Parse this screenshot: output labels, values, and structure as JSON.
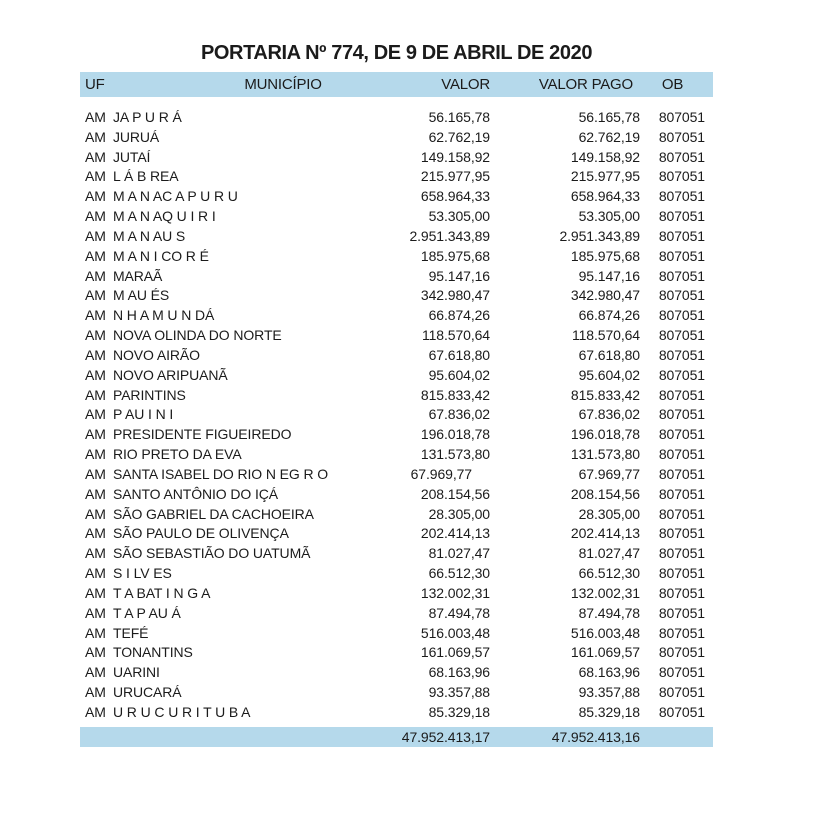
{
  "document": {
    "title": "PORTARIA Nº 774, DE 9 DE ABRIL DE 2020"
  },
  "colors": {
    "band_bg": "#b5d9eb",
    "text": "#1b1b1b",
    "page_bg": "#ffffff"
  },
  "table": {
    "columns": {
      "uf": "UF",
      "municipio": "MUNICÍPIO",
      "valor": "VALOR",
      "valor_pago": "VALOR PAGO",
      "ob": "OB"
    },
    "rows": [
      {
        "uf": "AM",
        "municipio": "JA P U R Á",
        "valor": "56.165,78",
        "valor_pago": "56.165,78",
        "ob": "807051"
      },
      {
        "uf": "AM",
        "municipio": "JURUÁ",
        "valor": "62.762,19",
        "valor_pago": "62.762,19",
        "ob": "807051"
      },
      {
        "uf": "AM",
        "municipio": "JUTAÍ",
        "valor": "149.158,92",
        "valor_pago": "149.158,92",
        "ob": "807051"
      },
      {
        "uf": "AM",
        "municipio": "L Á B REA",
        "valor": "215.977,95",
        "valor_pago": "215.977,95",
        "ob": "807051"
      },
      {
        "uf": "AM",
        "municipio": "M A N AC A P U R U",
        "valor": "658.964,33",
        "valor_pago": "658.964,33",
        "ob": "807051"
      },
      {
        "uf": "AM",
        "municipio": "M A N AQ U I R I",
        "valor": "53.305,00",
        "valor_pago": "53.305,00",
        "ob": "807051"
      },
      {
        "uf": "AM",
        "municipio": "M A N AU S",
        "valor": "2.951.343,89",
        "valor_pago": "2.951.343,89",
        "ob": "807051"
      },
      {
        "uf": "AM",
        "municipio": "M A N I CO R É",
        "valor": "185.975,68",
        "valor_pago": "185.975,68",
        "ob": "807051"
      },
      {
        "uf": "AM",
        "municipio": "MARAÃ",
        "valor": "95.147,16",
        "valor_pago": "95.147,16",
        "ob": "807051"
      },
      {
        "uf": "AM",
        "municipio": "M AU ÉS",
        "valor": "342.980,47",
        "valor_pago": "342.980,47",
        "ob": "807051"
      },
      {
        "uf": "AM",
        "municipio": "N H A M U N DÁ",
        "valor": "66.874,26",
        "valor_pago": "66.874,26",
        "ob": "807051"
      },
      {
        "uf": "AM",
        "municipio": "NOVA OLINDA DO NORTE",
        "valor": "118.570,64",
        "valor_pago": "118.570,64",
        "ob": "807051"
      },
      {
        "uf": "AM",
        "municipio": "NOVO AIRÃO",
        "valor": "67.618,80",
        "valor_pago": "67.618,80",
        "ob": "807051"
      },
      {
        "uf": "AM",
        "municipio": "NOVO ARIPUANÃ",
        "valor": "95.604,02",
        "valor_pago": "95.604,02",
        "ob": "807051"
      },
      {
        "uf": "AM",
        "municipio": "PARINTINS",
        "valor": "815.833,42",
        "valor_pago": "815.833,42",
        "ob": "807051"
      },
      {
        "uf": "AM",
        "municipio": "P AU I N I",
        "valor": "67.836,02",
        "valor_pago": "67.836,02",
        "ob": "807051"
      },
      {
        "uf": "AM",
        "municipio": "PRESIDENTE FIGUEIREDO",
        "valor": "196.018,78",
        "valor_pago": "196.018,78",
        "ob": "807051"
      },
      {
        "uf": "AM",
        "municipio": "RIO PRETO DA EVA",
        "valor": "131.573,80",
        "valor_pago": "131.573,80",
        "ob": "807051"
      },
      {
        "uf": "AM",
        "municipio": "SANTA ISABEL DO RIO N EG R O",
        "valor": "67.969,77",
        "valor_pago": "67.969,77",
        "ob": "807051",
        "valor_shift": true
      },
      {
        "uf": "AM",
        "municipio": "SANTO ANTÔNIO DO IÇÁ",
        "valor": "208.154,56",
        "valor_pago": "208.154,56",
        "ob": "807051"
      },
      {
        "uf": "AM",
        "municipio": "SÃO GABRIEL DA CACHOEIRA",
        "valor": "28.305,00",
        "valor_pago": "28.305,00",
        "ob": "807051"
      },
      {
        "uf": "AM",
        "municipio": "SÃO PAULO DE OLIVENÇA",
        "valor": "202.414,13",
        "valor_pago": "202.414,13",
        "ob": "807051"
      },
      {
        "uf": "AM",
        "municipio": "SÃO SEBASTIÃO DO UATUMÃ",
        "valor": "81.027,47",
        "valor_pago": "81.027,47",
        "ob": "807051"
      },
      {
        "uf": "AM",
        "municipio": "S I LV ES",
        "valor": "66.512,30",
        "valor_pago": "66.512,30",
        "ob": "807051"
      },
      {
        "uf": "AM",
        "municipio": "T A BAT I N G A",
        "valor": "132.002,31",
        "valor_pago": "132.002,31",
        "ob": "807051"
      },
      {
        "uf": "AM",
        "municipio": "T A P AU Á",
        "valor": "87.494,78",
        "valor_pago": "87.494,78",
        "ob": "807051"
      },
      {
        "uf": "AM",
        "municipio": "TEFÉ",
        "valor": "516.003,48",
        "valor_pago": "516.003,48",
        "ob": "807051"
      },
      {
        "uf": "AM",
        "municipio": "TONANTINS",
        "valor": "161.069,57",
        "valor_pago": "161.069,57",
        "ob": "807051"
      },
      {
        "uf": "AM",
        "municipio": "UARINI",
        "valor": "68.163,96",
        "valor_pago": "68.163,96",
        "ob": "807051"
      },
      {
        "uf": "AM",
        "municipio": "URUCARÁ",
        "valor": "93.357,88",
        "valor_pago": "93.357,88",
        "ob": "807051"
      },
      {
        "uf": "AM",
        "municipio": "U R U C U R I T U B A",
        "valor": "85.329,18",
        "valor_pago": "85.329,18",
        "ob": "807051"
      }
    ],
    "total": {
      "valor": "47.952.413,17",
      "valor_pago": "47.952.413,16"
    }
  }
}
